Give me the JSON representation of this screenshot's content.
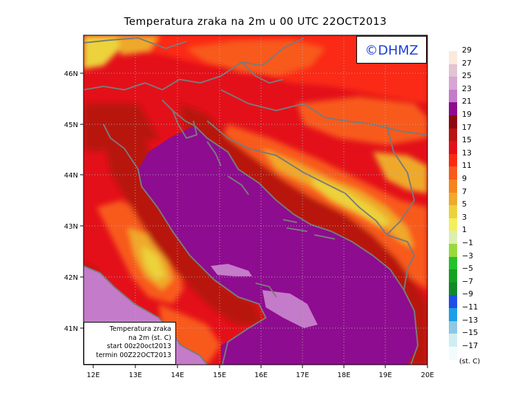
{
  "title": "Temperatura zraka na 2m u 00 UTC 22OCT2013",
  "logo": "©DHMZ",
  "info_box": {
    "line1": "Temperatura zraka",
    "line2": "na 2m (st. C)",
    "line3": "start 00z20oct2013",
    "line4": "termin 00Z22OCT2013"
  },
  "axes": {
    "lon_ticks": [
      "12E",
      "13E",
      "14E",
      "15E",
      "16E",
      "17E",
      "18E",
      "19E",
      "20E"
    ],
    "lat_ticks": [
      "46N",
      "45N",
      "44N",
      "43N",
      "42N",
      "41N"
    ]
  },
  "legend": {
    "units": "(st. C)",
    "labels": [
      "29",
      "27",
      "25",
      "23",
      "21",
      "19",
      "17",
      "15",
      "13",
      "11",
      "9",
      "7",
      "5",
      "3",
      "1",
      "−1",
      "−3",
      "−5",
      "−7",
      "−9",
      "−11",
      "−13",
      "−15",
      "−17"
    ],
    "colors": [
      "#fbe9dc",
      "#e2c4d4",
      "#d8a6d2",
      "#c47bc9",
      "#8e0c8f",
      "#8e0a0e",
      "#b81410",
      "#e3101a",
      "#fa2a12",
      "#f85a1a",
      "#f5841c",
      "#efa92c",
      "#ecd23a",
      "#f2f05c",
      "#dcefb0",
      "#9ad93c",
      "#22c22a",
      "#14a020",
      "#108a28",
      "#1e4ee8",
      "#1c9fe6",
      "#8ec8e2",
      "#cfeef2",
      "#f4fbfc"
    ]
  },
  "colors": {
    "sea_main": "#8e0c8f",
    "sea_light": "#c47bc9",
    "coast": "#7a7a7a"
  }
}
